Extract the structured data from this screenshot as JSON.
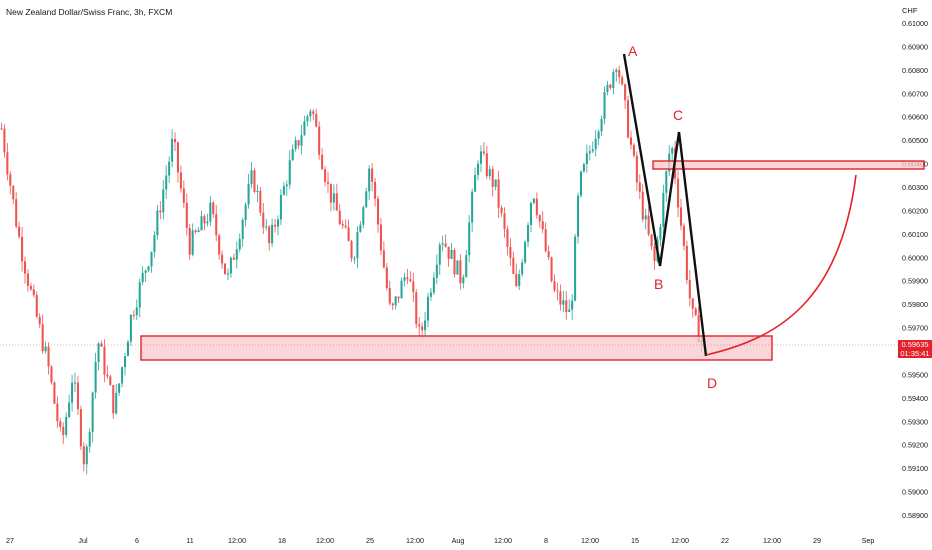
{
  "header": {
    "title": "New Zealand Dollar/Swiss Franc, 3h, FXCM",
    "currency": "CHF"
  },
  "price_badge": {
    "price": "0.59635",
    "countdown": "01:35:41"
  },
  "colors": {
    "up": "#26a69a",
    "down": "#ef5350",
    "zone_fill": "#f8c8cb",
    "zone_stroke": "#e4222b",
    "annotation_red": "#e4222b",
    "pattern_line": "#111111",
    "axis_text": "#131722"
  },
  "chart_data": {
    "type": "candlestick",
    "instrument": "New Zealand Dollar/Swiss Franc",
    "timeframe": "3h",
    "y_ticks": [
      "0.61000",
      "0.60900",
      "0.60800",
      "0.60700",
      "0.60600",
      "0.60500",
      "0.60400",
      "0.60300",
      "0.60200",
      "0.60100",
      "0.60000",
      "0.59900",
      "0.59800",
      "0.59700",
      "0.59600",
      "0.59500",
      "0.59400",
      "0.59300",
      "0.59200",
      "0.59100",
      "0.59000",
      "0.58900"
    ],
    "y_range": [
      0.5885,
      0.6107
    ],
    "x_ticks": [
      "27",
      "Jul",
      "6",
      "11",
      "12:00",
      "18",
      "12:00",
      "25",
      "12:00",
      "Aug",
      "12:00",
      "8",
      "12:00",
      "15",
      "12:00",
      "22",
      "12:00",
      "29",
      "Sep"
    ],
    "current_price": 0.59635,
    "support_zone": [
      0.5958,
      0.5968
    ],
    "resistance_zone": [
      0.60368,
      0.60408
    ],
    "harmonic_points": [
      {
        "label": "A",
        "price": 0.6087
      },
      {
        "label": "B",
        "price": 0.5997
      },
      {
        "label": "C",
        "price": 0.6053
      },
      {
        "label": "D",
        "price": 0.5961
      }
    ],
    "path_segments": [
      {
        "t": 0.0,
        "p": 0.6055
      },
      {
        "t": 0.02,
        "p": 0.601
      },
      {
        "t": 0.035,
        "p": 0.5985
      },
      {
        "t": 0.055,
        "p": 0.5955
      },
      {
        "t": 0.072,
        "p": 0.592
      },
      {
        "t": 0.085,
        "p": 0.595
      },
      {
        "t": 0.1,
        "p": 0.591
      },
      {
        "t": 0.115,
        "p": 0.5965
      },
      {
        "t": 0.135,
        "p": 0.5935
      },
      {
        "t": 0.155,
        "p": 0.5975
      },
      {
        "t": 0.18,
        "p": 0.6005
      },
      {
        "t": 0.205,
        "p": 0.605
      },
      {
        "t": 0.225,
        "p": 0.6005
      },
      {
        "t": 0.25,
        "p": 0.602
      },
      {
        "t": 0.27,
        "p": 0.599
      },
      {
        "t": 0.3,
        "p": 0.6035
      },
      {
        "t": 0.32,
        "p": 0.6005
      },
      {
        "t": 0.345,
        "p": 0.604
      },
      {
        "t": 0.37,
        "p": 0.6065
      },
      {
        "t": 0.39,
        "p": 0.603
      },
      {
        "t": 0.42,
        "p": 0.6
      },
      {
        "t": 0.44,
        "p": 0.604
      },
      {
        "t": 0.465,
        "p": 0.5975
      },
      {
        "t": 0.485,
        "p": 0.5995
      },
      {
        "t": 0.5,
        "p": 0.5965
      },
      {
        "t": 0.525,
        "p": 0.601
      },
      {
        "t": 0.55,
        "p": 0.599
      },
      {
        "t": 0.57,
        "p": 0.6045
      },
      {
        "t": 0.59,
        "p": 0.603
      },
      {
        "t": 0.615,
        "p": 0.5985
      },
      {
        "t": 0.635,
        "p": 0.603
      },
      {
        "t": 0.66,
        "p": 0.5985
      },
      {
        "t": 0.68,
        "p": 0.5975
      },
      {
        "t": 0.69,
        "p": 0.603
      },
      {
        "t": 0.715,
        "p": 0.606
      },
      {
        "t": 0.735,
        "p": 0.6085
      },
      {
        "t": 0.76,
        "p": 0.603
      },
      {
        "t": 0.78,
        "p": 0.5997
      },
      {
        "t": 0.8,
        "p": 0.605
      },
      {
        "t": 0.825,
        "p": 0.5975
      },
      {
        "t": 0.84,
        "p": 0.5962
      }
    ]
  }
}
